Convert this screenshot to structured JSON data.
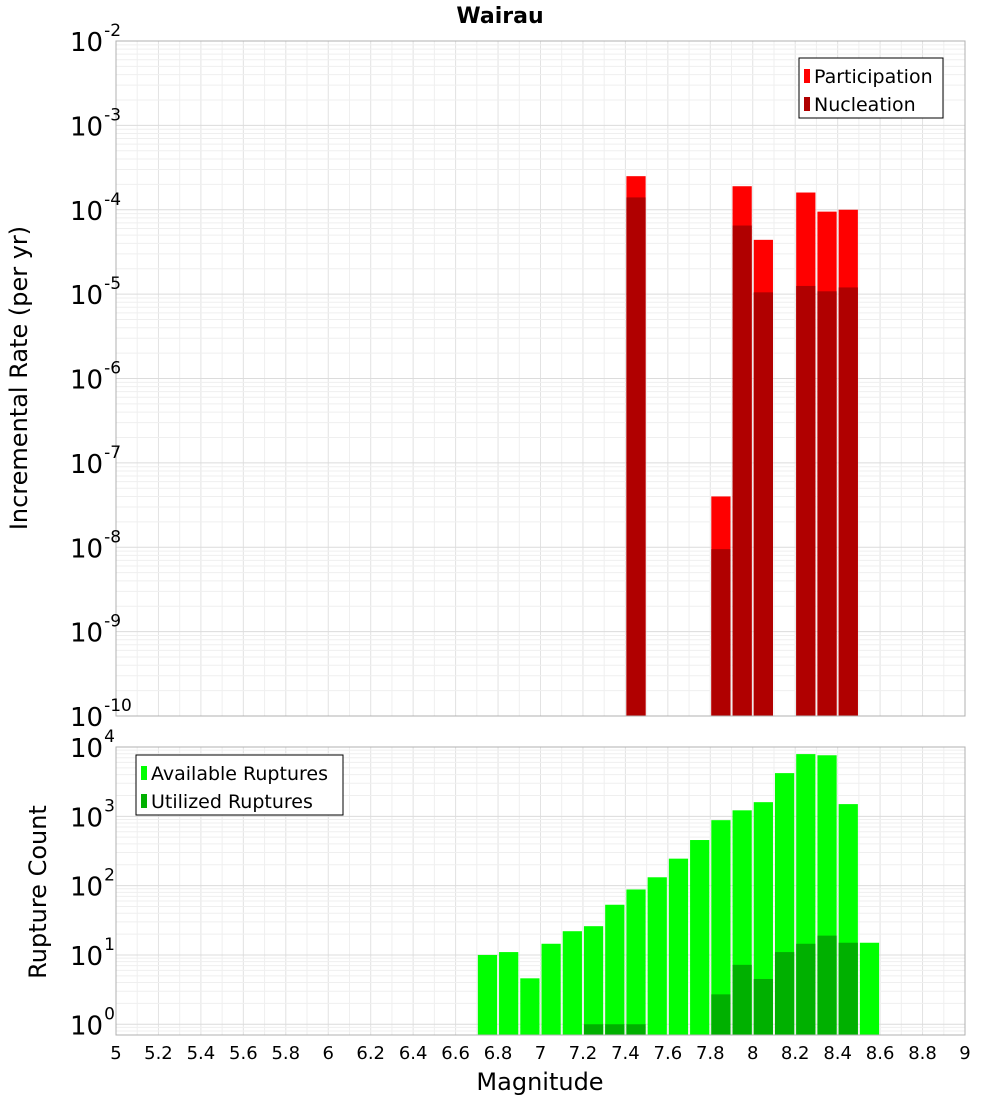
{
  "chart_data": [
    {
      "type": "bar",
      "title": "Wairau",
      "xlabel": "",
      "ylabel": "Incremental Rate (per yr)",
      "yscale": "log",
      "xlim": [
        5,
        9
      ],
      "ylim": [
        1e-10,
        0.01
      ],
      "y_ticks": [
        {
          "base": "10",
          "exp": "-10",
          "value": 1e-10
        },
        {
          "base": "10",
          "exp": "-9",
          "value": 1e-09
        },
        {
          "base": "10",
          "exp": "-8",
          "value": 1e-08
        },
        {
          "base": "10",
          "exp": "-7",
          "value": 1e-07
        },
        {
          "base": "10",
          "exp": "-6",
          "value": 1e-06
        },
        {
          "base": "10",
          "exp": "-5",
          "value": 1e-05
        },
        {
          "base": "10",
          "exp": "-4",
          "value": 0.0001
        },
        {
          "base": "10",
          "exp": "-3",
          "value": 0.001
        },
        {
          "base": "10",
          "exp": "-2",
          "value": 0.01
        }
      ],
      "grid": true,
      "legend_position": "top-right",
      "bin_width": 0.1,
      "series": [
        {
          "name": "Participation",
          "color": "#ff0000",
          "points": [
            {
              "x": 7.45,
              "y": 0.00025
            },
            {
              "x": 7.85,
              "y": 4e-08
            },
            {
              "x": 7.95,
              "y": 0.00019
            },
            {
              "x": 8.05,
              "y": 4.4e-05
            },
            {
              "x": 8.25,
              "y": 0.00016
            },
            {
              "x": 8.35,
              "y": 9.5e-05
            },
            {
              "x": 8.45,
              "y": 0.0001
            }
          ]
        },
        {
          "name": "Nucleation",
          "color": "#b00000",
          "points": [
            {
              "x": 7.45,
              "y": 0.00014
            },
            {
              "x": 7.85,
              "y": 9.5e-09
            },
            {
              "x": 7.95,
              "y": 6.5e-05
            },
            {
              "x": 8.05,
              "y": 1.05e-05
            },
            {
              "x": 8.25,
              "y": 1.25e-05
            },
            {
              "x": 8.35,
              "y": 1.08e-05
            },
            {
              "x": 8.45,
              "y": 1.2e-05
            }
          ]
        }
      ]
    },
    {
      "type": "bar",
      "title": "",
      "xlabel": "Magnitude",
      "ylabel": "Rupture Count",
      "yscale": "log",
      "xlim": [
        5,
        9
      ],
      "ylim": [
        0.7,
        10000
      ],
      "x_ticks": [
        "5",
        "5.2",
        "5.4",
        "5.6",
        "5.8",
        "6",
        "6.2",
        "6.4",
        "6.6",
        "6.8",
        "7",
        "7.2",
        "7.4",
        "7.6",
        "7.8",
        "8",
        "8.2",
        "8.4",
        "8.6",
        "8.8",
        "9"
      ],
      "y_ticks": [
        {
          "base": "10",
          "exp": "0",
          "value": 1
        },
        {
          "base": "10",
          "exp": "1",
          "value": 10
        },
        {
          "base": "10",
          "exp": "2",
          "value": 100
        },
        {
          "base": "10",
          "exp": "3",
          "value": 1000
        },
        {
          "base": "10",
          "exp": "4",
          "value": 10000
        }
      ],
      "grid": true,
      "legend_position": "top-left",
      "bin_width": 0.1,
      "series": [
        {
          "name": "Available Ruptures",
          "color": "#00ff00",
          "points": [
            {
              "x": 6.75,
              "y": 10
            },
            {
              "x": 6.85,
              "y": 11
            },
            {
              "x": 6.95,
              "y": 4.6
            },
            {
              "x": 7.05,
              "y": 14.5
            },
            {
              "x": 7.15,
              "y": 22
            },
            {
              "x": 7.25,
              "y": 26
            },
            {
              "x": 7.35,
              "y": 53
            },
            {
              "x": 7.45,
              "y": 88
            },
            {
              "x": 7.55,
              "y": 132
            },
            {
              "x": 7.65,
              "y": 245
            },
            {
              "x": 7.75,
              "y": 455
            },
            {
              "x": 7.85,
              "y": 880
            },
            {
              "x": 7.95,
              "y": 1220
            },
            {
              "x": 8.05,
              "y": 1600
            },
            {
              "x": 8.15,
              "y": 4200
            },
            {
              "x": 8.25,
              "y": 7900
            },
            {
              "x": 8.35,
              "y": 7600
            },
            {
              "x": 8.45,
              "y": 1500
            },
            {
              "x": 8.55,
              "y": 15
            }
          ]
        },
        {
          "name": "Utilized Ruptures",
          "color": "#00b000",
          "points": [
            {
              "x": 7.25,
              "y": 1
            },
            {
              "x": 7.35,
              "y": 1
            },
            {
              "x": 7.45,
              "y": 1
            },
            {
              "x": 7.85,
              "y": 2.7
            },
            {
              "x": 7.95,
              "y": 7.2
            },
            {
              "x": 8.05,
              "y": 4.5
            },
            {
              "x": 8.15,
              "y": 11
            },
            {
              "x": 8.25,
              "y": 14.5
            },
            {
              "x": 8.35,
              "y": 19
            },
            {
              "x": 8.45,
              "y": 15
            }
          ]
        }
      ]
    }
  ]
}
